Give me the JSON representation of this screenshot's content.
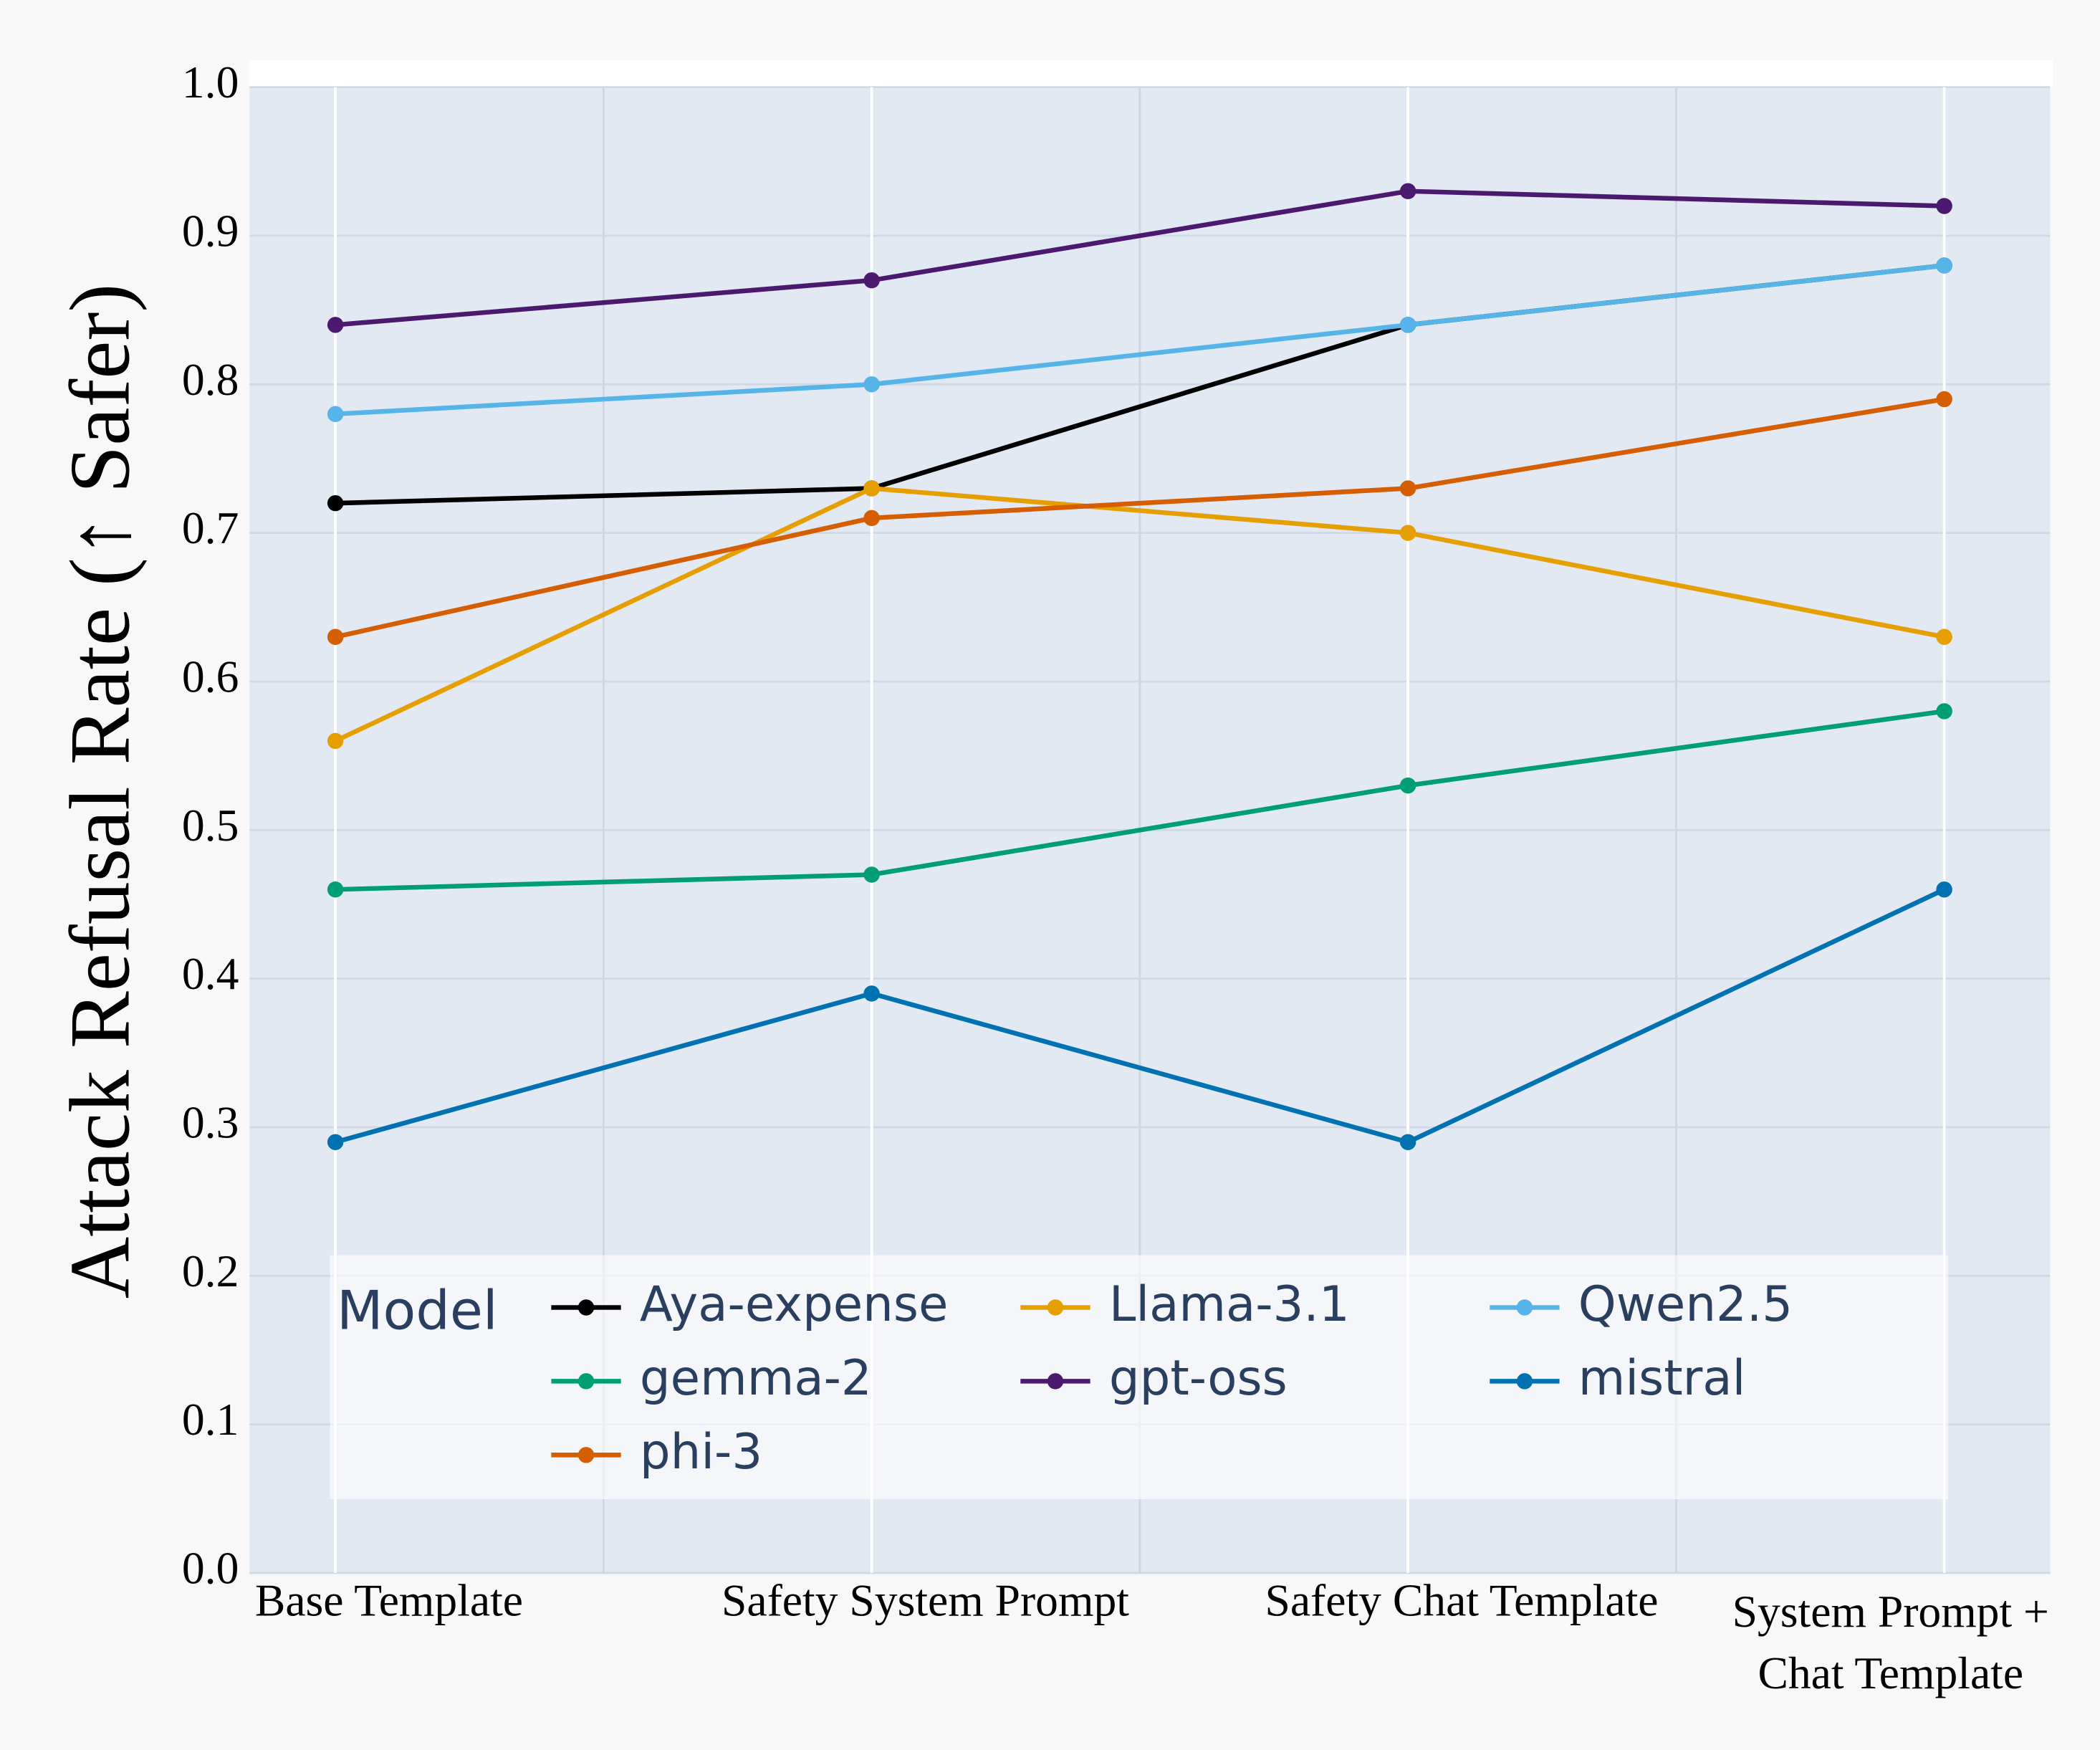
{
  "chart_data": {
    "type": "line",
    "y_label": "Attack Refusal Rate (↑ Safer)",
    "categories": [
      "Base Template",
      "Safety System Prompt",
      "Safety Chat Template",
      "System Prompt +\nChat Template"
    ],
    "ylim": [
      0,
      1
    ],
    "yticks": [
      {
        "value": 0,
        "label": "0.0"
      },
      0.1,
      0.2,
      0.3,
      0.4,
      0.5,
      0.6,
      0.7,
      0.8,
      0.9,
      {
        "value": 1,
        "label": "1.0"
      }
    ],
    "grid": true,
    "legend_title": "Model",
    "legend": "lower center",
    "series": [
      {
        "name": "Aya-expense",
        "color": "#000000",
        "values": [
          0.72,
          0.73,
          0.84,
          0.88
        ]
      },
      {
        "name": "Llama-3.1",
        "color": "#e69f00",
        "values": [
          0.56,
          0.73,
          0.7,
          0.63
        ]
      },
      {
        "name": "Qwen2.5",
        "color": "#56b4e9",
        "values": [
          0.78,
          0.8,
          0.84,
          0.88
        ]
      },
      {
        "name": "gemma-2",
        "color": "#009e73",
        "values": [
          0.46,
          0.47,
          0.53,
          0.58
        ]
      },
      {
        "name": "gpt-oss",
        "color": "#4b1a6e",
        "values": [
          0.84,
          0.87,
          0.93,
          0.92
        ]
      },
      {
        "name": "mistral",
        "color": "#0072b2",
        "values": [
          0.29,
          0.39,
          0.29,
          0.46
        ]
      },
      {
        "name": "phi-3",
        "color": "#d55e00",
        "values": [
          0.63,
          0.71,
          0.73,
          0.79
        ]
      }
    ]
  }
}
